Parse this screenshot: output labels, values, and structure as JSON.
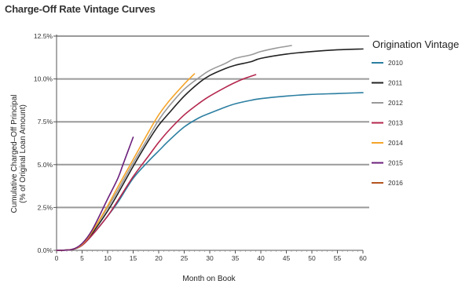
{
  "chart_data": {
    "type": "line",
    "title": "Charge-Off Rate Vintage Curves",
    "xlabel": "Month on Book",
    "ylabel_line1": "Cumulative Charged–Off Principal",
    "ylabel_line2": "(% of Original Loan Amount)",
    "xlim": [
      0,
      60
    ],
    "ylim": [
      0,
      12.5
    ],
    "x_ticks": [
      "0",
      "5",
      "10",
      "15",
      "20",
      "25",
      "30",
      "35",
      "40",
      "45",
      "50",
      "55",
      "60"
    ],
    "y_ticks": [
      "0.0%",
      "2.5%",
      "5.0%",
      "7.5%",
      "10.0%",
      "12.5%"
    ],
    "grid": true,
    "legend": {
      "title": "Origination Vintage",
      "placement": "right"
    },
    "series": [
      {
        "name": "2010",
        "color": "#2b7ea1",
        "x": [
          0,
          3,
          5,
          7,
          10,
          12,
          15,
          18,
          20,
          22,
          25,
          28,
          30,
          33,
          35,
          38,
          40,
          45,
          50,
          55,
          60
        ],
        "y": [
          0.0,
          0.05,
          0.3,
          0.9,
          2.0,
          2.8,
          4.2,
          5.2,
          5.8,
          6.4,
          7.2,
          7.75,
          8.0,
          8.35,
          8.55,
          8.75,
          8.85,
          9.0,
          9.1,
          9.15,
          9.2
        ]
      },
      {
        "name": "2011",
        "color": "#222222",
        "x": [
          0,
          3,
          5,
          7,
          10,
          12,
          15,
          18,
          20,
          22,
          25,
          28,
          30,
          33,
          35,
          38,
          40,
          45,
          50,
          55,
          60
        ],
        "y": [
          0.0,
          0.05,
          0.3,
          1.0,
          2.3,
          3.3,
          4.9,
          6.4,
          7.3,
          8.0,
          9.0,
          9.8,
          10.2,
          10.6,
          10.8,
          11.0,
          11.2,
          11.45,
          11.6,
          11.7,
          11.75
        ]
      },
      {
        "name": "2012",
        "color": "#999999",
        "x": [
          0,
          3,
          5,
          7,
          10,
          12,
          15,
          18,
          20,
          22,
          25,
          28,
          30,
          33,
          35,
          38,
          40,
          43,
          46
        ],
        "y": [
          0.0,
          0.05,
          0.3,
          1.1,
          2.5,
          3.5,
          5.1,
          6.6,
          7.6,
          8.4,
          9.4,
          10.1,
          10.5,
          10.9,
          11.2,
          11.4,
          11.6,
          11.8,
          11.95
        ]
      },
      {
        "name": "2013",
        "color": "#b4264d",
        "x": [
          0,
          3,
          5,
          7,
          10,
          12,
          15,
          18,
          20,
          22,
          25,
          28,
          30,
          33,
          35,
          37,
          39
        ],
        "y": [
          0.0,
          0.05,
          0.3,
          0.9,
          2.0,
          2.9,
          4.3,
          5.5,
          6.3,
          7.0,
          7.9,
          8.6,
          9.0,
          9.5,
          9.8,
          10.05,
          10.25
        ]
      },
      {
        "name": "2014",
        "color": "#f5a52a",
        "x": [
          0,
          3,
          5,
          7,
          10,
          12,
          15,
          18,
          20,
          22,
          25,
          27
        ],
        "y": [
          0.0,
          0.05,
          0.35,
          1.1,
          2.6,
          3.7,
          5.3,
          6.9,
          7.9,
          8.7,
          9.7,
          10.3
        ]
      },
      {
        "name": "2015",
        "color": "#6b1f7b",
        "x": [
          0,
          3,
          5,
          7,
          10,
          12,
          13,
          14,
          15
        ],
        "y": [
          0.0,
          0.05,
          0.4,
          1.2,
          3.0,
          4.2,
          5.0,
          5.8,
          6.6
        ]
      },
      {
        "name": "2016",
        "color": "#b4541f",
        "x": [],
        "y": []
      }
    ]
  }
}
